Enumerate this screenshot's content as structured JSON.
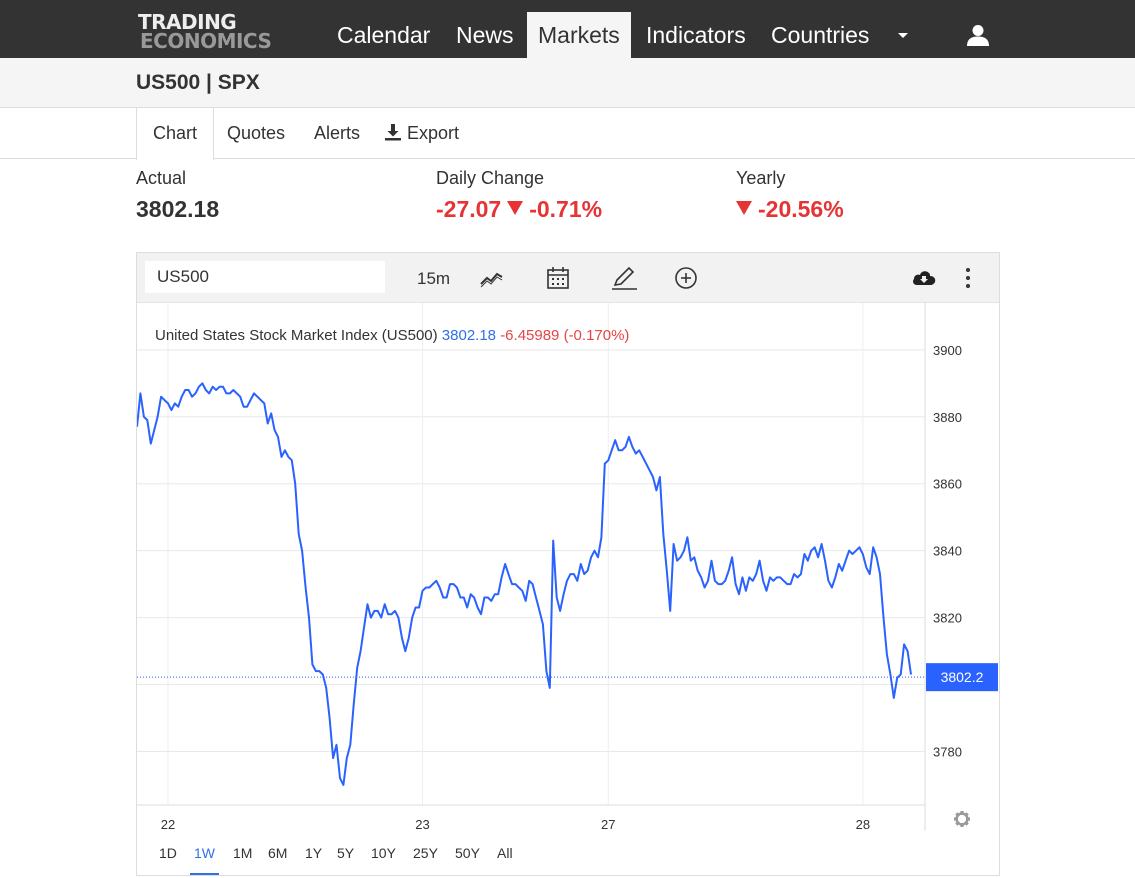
{
  "nav": {
    "logo_line1": "TRADING",
    "logo_line2": "ECONOMICS",
    "items": [
      "Calendar",
      "News",
      "Markets",
      "Indicators",
      "Countries"
    ],
    "active": "Markets",
    "user_icon": "user-icon"
  },
  "page": {
    "title": "US500 | SPX"
  },
  "tabs": {
    "chart": "Chart",
    "quotes": "Quotes",
    "alerts": "Alerts",
    "export": "Export"
  },
  "stats": {
    "actual_label": "Actual",
    "actual_value": "3802.18",
    "daily_label": "Daily Change",
    "daily_abs": "-27.07",
    "daily_pct": "-0.71%",
    "yearly_label": "Yearly",
    "yearly_pct": "-20.56%"
  },
  "chart_toolbar": {
    "symbol": "US500",
    "interval": "15m",
    "icons": [
      "line-chart-icon",
      "calendar-icon",
      "draw-icon",
      "add-circle-icon",
      "download-cloud-icon",
      "more-vertical-icon"
    ]
  },
  "chart_data": {
    "type": "line",
    "series": [
      {
        "legend": "United States Stock Market Index (US500)",
        "last_value": "3802.18",
        "change": "-6.45989 (-0.170%)",
        "color": "#2962ff",
        "values": [
          3877,
          3887,
          3880,
          3879,
          3872,
          3876,
          3880,
          3886,
          3885,
          3884,
          3882,
          3884,
          3883,
          3886,
          3888,
          3888,
          3886,
          3887,
          3889,
          3890,
          3888,
          3887,
          3889,
          3888,
          3889,
          3889,
          3887,
          3887,
          3888,
          3887,
          3886,
          3883,
          3883,
          3885,
          3887,
          3886,
          3885,
          3884,
          3878,
          3881,
          3876,
          3874,
          3868,
          3870,
          3868,
          3867,
          3860,
          3845,
          3840,
          3829,
          3820,
          3806,
          3804,
          3804,
          3803,
          3799,
          3790,
          3778,
          3782,
          3772,
          3770,
          3778,
          3782,
          3794,
          3805,
          3810,
          3817,
          3824,
          3820,
          3822,
          3822,
          3820,
          3824,
          3821,
          3821,
          3822,
          3820,
          3814,
          3810,
          3814,
          3820,
          3823,
          3823,
          3828,
          3829,
          3829,
          3830,
          3831,
          3829,
          3826,
          3826,
          3830,
          3830,
          3829,
          3826,
          3826,
          3823,
          3827,
          3826,
          3823,
          3821,
          3826,
          3826,
          3825,
          3827,
          3827,
          3832,
          3836,
          3833,
          3830,
          3830,
          3829,
          3828,
          3825,
          3831,
          3830,
          3826,
          3822,
          3818,
          3804,
          3799,
          3843,
          3826,
          3822,
          3827,
          3831,
          3833,
          3833,
          3831,
          3836,
          3833,
          3834,
          3838,
          3840,
          3838,
          3844,
          3866,
          3867,
          3870,
          3873,
          3870,
          3870,
          3871,
          3874,
          3871,
          3869,
          3870,
          3868,
          3866,
          3864,
          3862,
          3858,
          3862,
          3845,
          3834,
          3822,
          3842,
          3837,
          3838,
          3840,
          3844,
          3837,
          3838,
          3834,
          3832,
          3829,
          3831,
          3837,
          3831,
          3830,
          3830,
          3831,
          3834,
          3838,
          3830,
          3827,
          3832,
          3828,
          3832,
          3831,
          3833,
          3837,
          3831,
          3828,
          3832,
          3831,
          3832,
          3832,
          3831,
          3830,
          3830,
          3833,
          3832,
          3833,
          3839,
          3837,
          3840,
          3841,
          3838,
          3842,
          3837,
          3831,
          3829,
          3832,
          3836,
          3834,
          3837,
          3840,
          3839,
          3840,
          3841,
          3839,
          3835,
          3833,
          3841,
          3838,
          3833,
          3820,
          3809,
          3803,
          3796,
          3802,
          3803,
          3812,
          3810,
          3803
        ]
      }
    ],
    "x_tick_labels": [
      "22",
      "23",
      "27",
      "28"
    ],
    "x_tick_positions": [
      9,
      83,
      137,
      211
    ],
    "y_ticks": [
      3780,
      3800,
      3820,
      3840,
      3860,
      3880,
      3900
    ],
    "y_tick_labels": [
      "3780",
      "",
      "3820",
      "3840",
      "3860",
      "3880",
      "3900"
    ],
    "ylim": [
      3764,
      3914
    ],
    "current_price_label": "3802.2",
    "current_price": 3802.2,
    "grid": true,
    "ranges": [
      "1D",
      "1W",
      "1M",
      "6M",
      "1Y",
      "5Y",
      "10Y",
      "25Y",
      "50Y",
      "All"
    ],
    "active_range": "1W",
    "settings_icon": "gear-icon"
  }
}
